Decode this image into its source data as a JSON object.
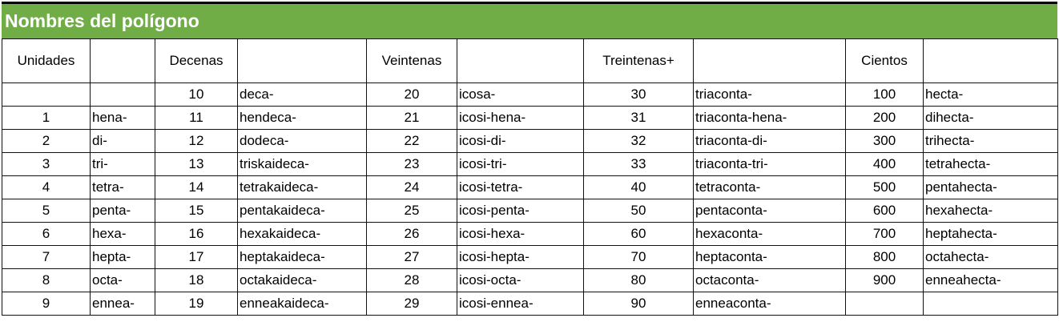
{
  "title": "Nombres del polígono",
  "accent_color": "#70ad47",
  "headers": [
    "Unidades",
    "",
    "Decenas",
    "",
    "Veintenas",
    "",
    "Treintenas+",
    "",
    "Cientos",
    ""
  ],
  "rows": [
    [
      "",
      "",
      "10",
      "deca-",
      "20",
      "icosa-",
      "30",
      "triaconta-",
      "100",
      "hecta-"
    ],
    [
      "1",
      "hena-",
      "11",
      "hendeca-",
      "21",
      "icosi-hena-",
      "31",
      "triaconta-hena-",
      "200",
      "dihecta-"
    ],
    [
      "2",
      "di-",
      "12",
      "dodeca-",
      "22",
      "icosi-di-",
      "32",
      "triaconta-di-",
      "300",
      "trihecta-"
    ],
    [
      "3",
      "tri-",
      "13",
      "triskaideca-",
      "23",
      "icosi-tri-",
      "33",
      "triaconta-tri-",
      "400",
      "tetrahecta-"
    ],
    [
      "4",
      "tetra-",
      "14",
      "tetrakaideca-",
      "24",
      "icosi-tetra-",
      "40",
      "tetraconta-",
      "500",
      "pentahecta-"
    ],
    [
      "5",
      "penta-",
      "15",
      "pentakaideca-",
      "25",
      "icosi-penta-",
      "50",
      "pentaconta-",
      "600",
      "hexahecta-"
    ],
    [
      "6",
      "hexa-",
      "16",
      "hexakaideca-",
      "26",
      "icosi-hexa-",
      "60",
      "hexaconta-",
      "700",
      "heptahecta-"
    ],
    [
      "7",
      "hepta-",
      "17",
      "heptakaideca-",
      "27",
      "icosi-hepta-",
      "70",
      "heptaconta-",
      "800",
      "octahecta-"
    ],
    [
      "8",
      "octa-",
      "18",
      "octakaideca-",
      "28",
      "icosi-octa-",
      "80",
      "octaconta-",
      "900",
      "enneahecta-"
    ],
    [
      "9",
      "ennea-",
      "19",
      "enneakaideca-",
      "29",
      "icosi-ennea-",
      "90",
      "enneaconta-",
      "",
      ""
    ]
  ]
}
